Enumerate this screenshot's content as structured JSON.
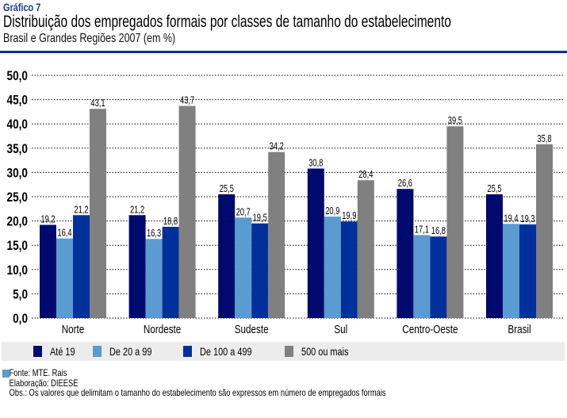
{
  "header": {
    "label": "Gráfico 7",
    "title": "Distribuição dos empregados formais por classes de tamanho do estabelecimento",
    "subtitle": "Brasil e Grandes Regiões 2007 (em %)"
  },
  "chart_data": {
    "type": "bar",
    "title": "Distribuição dos empregados formais por classes de tamanho do estabelecimento",
    "subtitle": "Brasil e Grandes Regiões 2007 (em %)",
    "xlabel": "",
    "ylabel": "",
    "ylim": [
      0,
      50
    ],
    "yticks": [
      "0,0",
      "5,0",
      "10,0",
      "15,0",
      "20,0",
      "25,0",
      "30,0",
      "35,0",
      "40,0",
      "45,0",
      "50,0"
    ],
    "ytick_values": [
      0,
      5,
      10,
      15,
      20,
      25,
      30,
      35,
      40,
      45,
      50
    ],
    "grid": true,
    "legend_position": "bottom",
    "categories": [
      "Norte",
      "Nordeste",
      "Sudeste",
      "Sul",
      "Centro-Oeste",
      "Brasil"
    ],
    "series": [
      {
        "name": "Até 19",
        "color": "#000a6e",
        "values": [
          19.2,
          21.2,
          25.5,
          30.8,
          26.6,
          25.5
        ],
        "labels": [
          "19,2",
          "21,2",
          "25,5",
          "30,8",
          "26,6",
          "25,5"
        ]
      },
      {
        "name": "De 20 a 99",
        "color": "#5a9bd0",
        "values": [
          16.4,
          16.3,
          20.7,
          20.9,
          17.1,
          19.4
        ],
        "labels": [
          "16,4",
          "16,3",
          "20,7",
          "20,9",
          "17,1",
          "19,4"
        ]
      },
      {
        "name": "De 100 a 499",
        "color": "#00309c",
        "values": [
          21.2,
          18.8,
          19.5,
          19.9,
          16.8,
          19.3
        ],
        "labels": [
          "21,2",
          "18,8",
          "19,5",
          "19,9",
          "16,8",
          "19,3"
        ]
      },
      {
        "name": "500 ou mais",
        "color": "#808080",
        "values": [
          43.1,
          43.7,
          34.2,
          28.4,
          39.5,
          35.8
        ],
        "labels": [
          "43,1",
          "43,7",
          "34,2",
          "28,4",
          "39,5",
          "35,8"
        ]
      }
    ]
  },
  "legend": {
    "items": [
      {
        "label": "Até 19",
        "color": "#000a6e"
      },
      {
        "label": "De 20 a 99",
        "color": "#5a9bd0"
      },
      {
        "label": "De 100 a 499",
        "color": "#00309c"
      },
      {
        "label": "500 ou mais",
        "color": "#808080"
      }
    ]
  },
  "footer": {
    "source": "Fonte: MTE. Rais",
    "elaboration": "Elaboração: DIEESE",
    "note": "Obs.: Os valores que delimitam o tamanho do estabelecimento são expressos em número de empregados formais"
  }
}
